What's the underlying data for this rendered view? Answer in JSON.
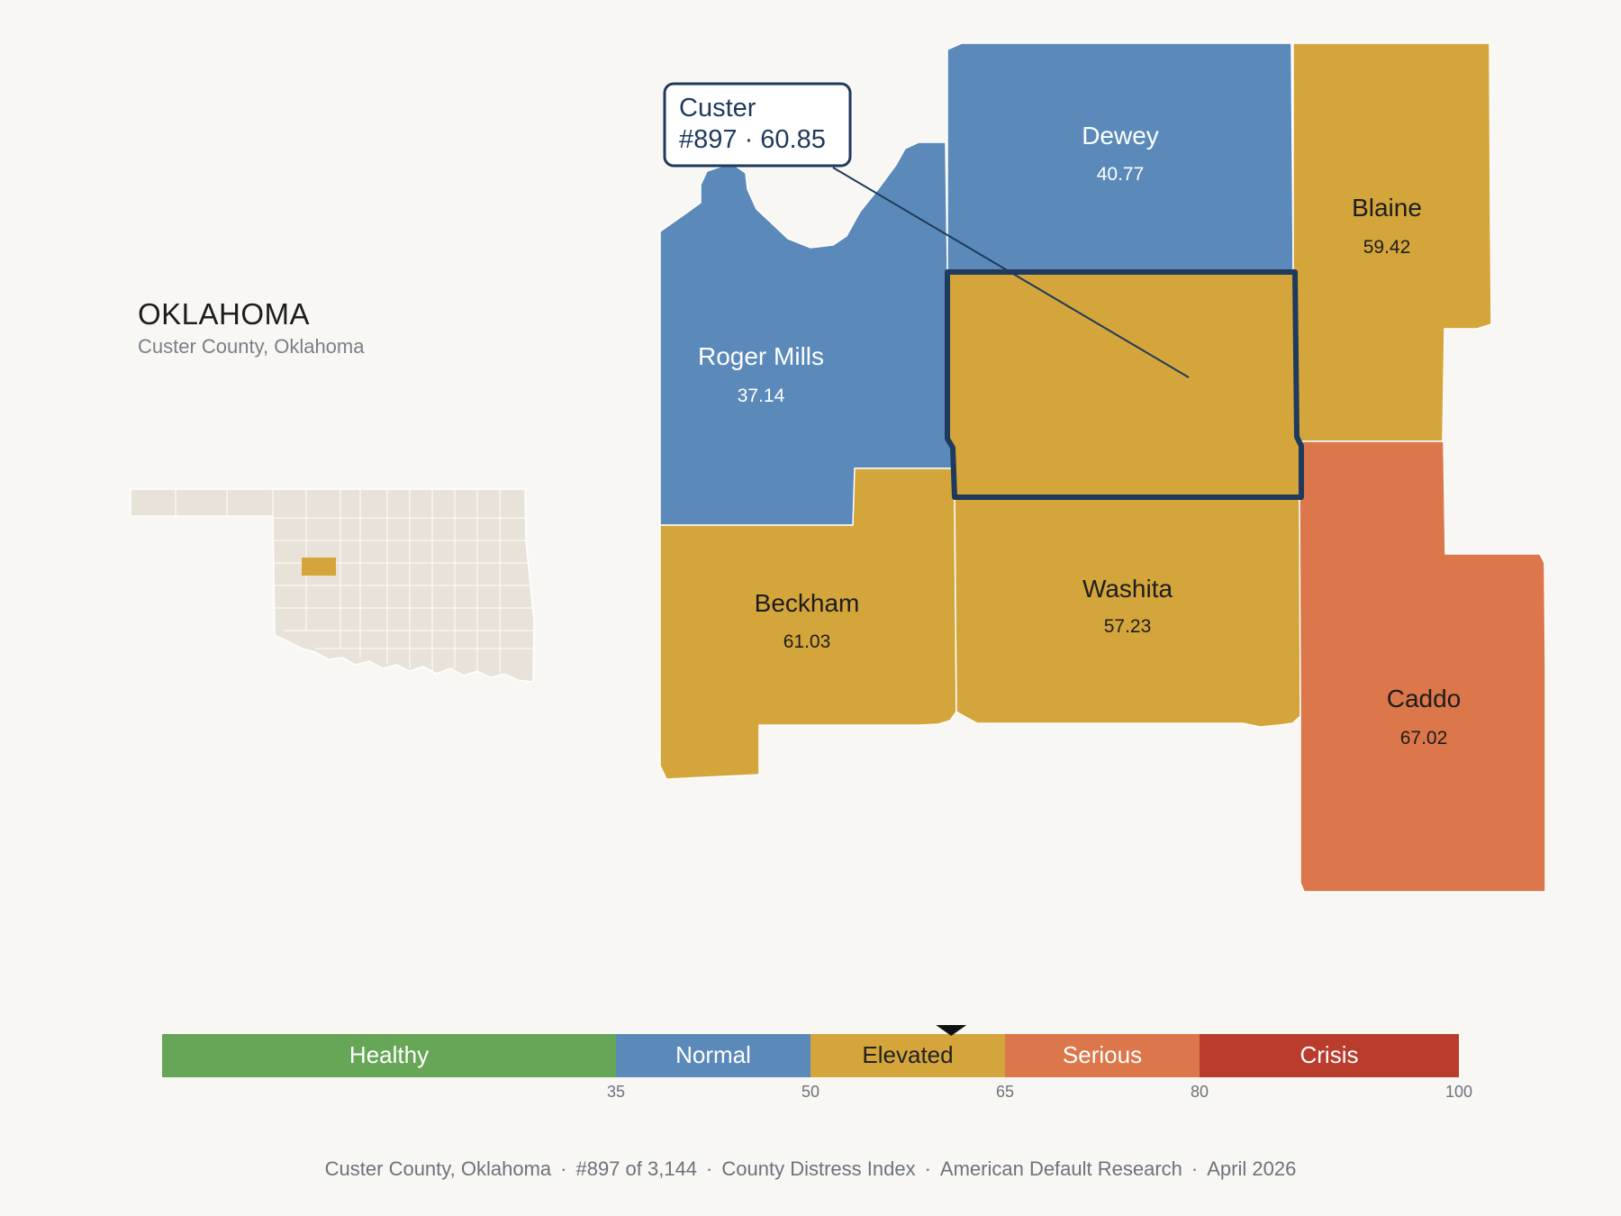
{
  "header": {
    "state": "OKLAHOMA",
    "subtitle": "Custer County, Oklahoma"
  },
  "callout": {
    "name": "Custer",
    "detail": "#897 · 60.85"
  },
  "counties": [
    {
      "id": "dewey",
      "name": "Dewey",
      "value": "40.77",
      "category": "Normal"
    },
    {
      "id": "blaine",
      "name": "Blaine",
      "value": "59.42",
      "category": "Elevated"
    },
    {
      "id": "roger-mills",
      "name": "Roger Mills",
      "value": "37.14",
      "category": "Normal"
    },
    {
      "id": "custer",
      "name": "Custer",
      "value": "60.85",
      "category": "Elevated",
      "highlighted": true
    },
    {
      "id": "beckham",
      "name": "Beckham",
      "value": "61.03",
      "category": "Elevated"
    },
    {
      "id": "washita",
      "name": "Washita",
      "value": "57.23",
      "category": "Elevated"
    },
    {
      "id": "caddo",
      "name": "Caddo",
      "value": "67.02",
      "category": "Serious"
    }
  ],
  "legend": {
    "bands": [
      {
        "label": "Healthy",
        "from": 0,
        "to": 35,
        "color": "#67a657",
        "text_color": "#ffffff"
      },
      {
        "label": "Normal",
        "from": 35,
        "to": 50,
        "color": "#5b8aba",
        "text_color": "#ffffff"
      },
      {
        "label": "Elevated",
        "from": 50,
        "to": 65,
        "color": "#d4a53a",
        "text_color": "#222222"
      },
      {
        "label": "Serious",
        "from": 65,
        "to": 80,
        "color": "#db774a",
        "text_color": "#ffffff"
      },
      {
        "label": "Crisis",
        "from": 80,
        "to": 100,
        "color": "#b93c2d",
        "text_color": "#ffffff"
      }
    ],
    "ticks": [
      "35",
      "50",
      "65",
      "80",
      "100"
    ],
    "marker_value": 60.85
  },
  "colors": {
    "normal": "#5b8aba",
    "elevated": "#d4a53a",
    "serious": "#db774a",
    "highlight_outline": "#1f3a5c",
    "inset_fill": "#e8e2d8"
  },
  "footer": {
    "location": "Custer County, Oklahoma",
    "rank": "#897 of 3,144",
    "index": "County Distress Index",
    "source": "American Default Research",
    "date": "April 2026"
  }
}
